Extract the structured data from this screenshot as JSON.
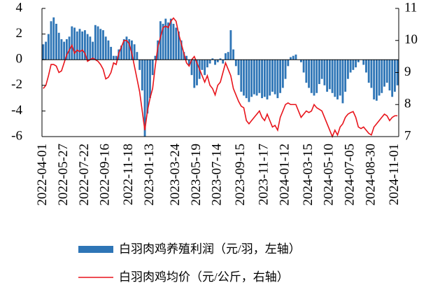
{
  "chart_data": {
    "type": "bar-line",
    "categories": [
      "2022-04-01",
      null,
      null,
      null,
      null,
      null,
      null,
      null,
      "2022-05-27",
      null,
      null,
      null,
      null,
      null,
      null,
      null,
      "2022-07-22",
      null,
      null,
      null,
      null,
      null,
      null,
      null,
      "2022-09-16",
      null,
      null,
      null,
      null,
      null,
      null,
      null,
      null,
      "2022-11-18",
      null,
      null,
      null,
      null,
      null,
      null,
      null,
      "2023-01-13",
      null,
      null,
      null,
      null,
      null,
      null,
      null,
      null,
      null,
      "2023-03-24",
      null,
      null,
      null,
      null,
      null,
      null,
      null,
      "2023-05-19",
      null,
      null,
      null,
      null,
      null,
      null,
      null,
      "2023-07-14",
      null,
      null,
      null,
      null,
      null,
      null,
      null,
      null,
      "2023-09-15",
      null,
      null,
      null,
      null,
      null,
      null,
      null,
      null,
      "2023-11-17",
      null,
      null,
      null,
      null,
      null,
      null,
      null,
      "2024-01-12",
      null,
      null,
      null,
      null,
      null,
      null,
      null,
      null,
      "2024-03-15",
      null,
      null,
      null,
      null,
      null,
      null,
      null,
      "2024-05-10",
      null,
      null,
      null,
      null,
      null,
      null,
      null,
      "2024-07-05",
      null,
      null,
      null,
      null,
      null,
      null,
      null,
      "2024-08-30",
      null,
      null,
      null,
      null,
      null,
      null,
      null,
      null,
      "2024-11-01",
      null
    ],
    "series": [
      {
        "name": "白羽肉鸡养殖利润（元/羽，左轴）",
        "type": "bar",
        "axis": "y",
        "color": "#2e75b6",
        "values": [
          1.2,
          1.4,
          2.0,
          3.0,
          3.3,
          2.8,
          2.1,
          1.6,
          1.4,
          1.6,
          1.8,
          2.6,
          2.5,
          2.2,
          2.4,
          2.2,
          2.3,
          2.0,
          1.8,
          1.4,
          2.7,
          2.6,
          2.4,
          2.3,
          1.8,
          1.5,
          1.0,
          0.3,
          0.3,
          0.8,
          1.1,
          1.6,
          1.8,
          1.6,
          1.5,
          1.2,
          0.6,
          -0.8,
          -2.4,
          -6.0,
          -4.2,
          -3.0,
          -1.2,
          0.3,
          1.5,
          3.0,
          2.8,
          3.2,
          2.9,
          3.2,
          2.8,
          2.5,
          2.2,
          1.5,
          0.6,
          0.3,
          -0.4,
          -1.2,
          -2.2,
          -2.0,
          -1.5,
          -0.8,
          -1.2,
          -0.6,
          -0.3,
          0.1,
          -0.4,
          -0.2,
          0.1,
          -0.3,
          0.5,
          0.6,
          2.3,
          0.8,
          -0.5,
          -1.2,
          -2.5,
          -2.8,
          -3.0,
          -3.3,
          -2.9,
          -2.7,
          -2.8,
          -2.6,
          -3.0,
          -2.9,
          -3.1,
          -2.8,
          -2.5,
          -2.7,
          -3.0,
          -2.6,
          -2.2,
          -1.5,
          -0.5,
          0.2,
          0.3,
          0.4,
          0.0,
          -0.2,
          -1.0,
          -1.8,
          -2.2,
          -2.6,
          -2.8,
          -2.6,
          -1.9,
          -1.5,
          -2.0,
          -2.5,
          -2.3,
          -2.6,
          -2.9,
          -3.1,
          -2.8,
          -3.4,
          -2.5,
          -1.5,
          -1.0,
          -0.8,
          -0.6,
          -0.2,
          0.0,
          -0.4,
          -1.0,
          -1.8,
          -2.2,
          -3.1,
          -3.2,
          -2.8,
          -2.6,
          -2.1,
          -1.8,
          -2.4,
          -2.9,
          -2.5,
          -2.0
        ]
      },
      {
        "name": "白羽肉鸡均价（元/公斤，右轴）",
        "type": "line",
        "axis": "y2",
        "color": "#e8141b",
        "values": [
          8.5,
          8.6,
          8.9,
          9.25,
          9.25,
          9.2,
          9.0,
          9.05,
          9.3,
          9.55,
          9.7,
          9.85,
          9.6,
          9.7,
          9.65,
          9.7,
          9.6,
          9.35,
          9.4,
          9.45,
          9.4,
          9.35,
          9.25,
          9.1,
          8.8,
          8.85,
          9.0,
          9.3,
          9.25,
          9.6,
          9.8,
          10.0,
          10.0,
          9.9,
          9.6,
          9.2,
          8.8,
          8.4,
          7.8,
          7.2,
          7.8,
          8.2,
          8.5,
          9.2,
          9.8,
          10.1,
          10.4,
          10.45,
          10.4,
          10.6,
          10.7,
          10.6,
          10.2,
          9.9,
          9.6,
          9.3,
          9.2,
          9.4,
          9.5,
          9.3,
          9.1,
          8.9,
          8.7,
          8.9,
          8.6,
          8.5,
          8.3,
          8.6,
          8.7,
          9.0,
          9.3,
          9.1,
          8.9,
          8.5,
          8.3,
          8.1,
          7.95,
          7.9,
          7.5,
          7.4,
          7.5,
          7.6,
          7.7,
          7.8,
          7.6,
          7.5,
          7.7,
          7.5,
          7.3,
          7.35,
          7.2,
          7.6,
          7.8,
          8.0,
          8.05,
          8.0,
          8.0,
          8.0,
          7.8,
          7.6,
          7.7,
          7.8,
          7.75,
          7.8,
          8.0,
          7.9,
          7.85,
          7.8,
          7.6,
          7.4,
          7.2,
          7.0,
          7.2,
          7.05,
          7.3,
          7.4,
          7.6,
          7.7,
          7.75,
          7.78,
          7.6,
          7.3,
          7.25,
          7.3,
          7.2,
          7.1,
          7.05,
          7.3,
          7.4,
          7.5,
          7.6,
          7.7,
          7.65,
          7.5,
          7.6,
          7.65,
          7.65
        ]
      }
    ],
    "ylim": [
      -6,
      4
    ],
    "yticks": [
      -6,
      -4,
      -2,
      0,
      2,
      4
    ],
    "y2lim": [
      7,
      11
    ],
    "y2ticks": [
      7,
      8,
      9,
      10,
      11
    ]
  }
}
